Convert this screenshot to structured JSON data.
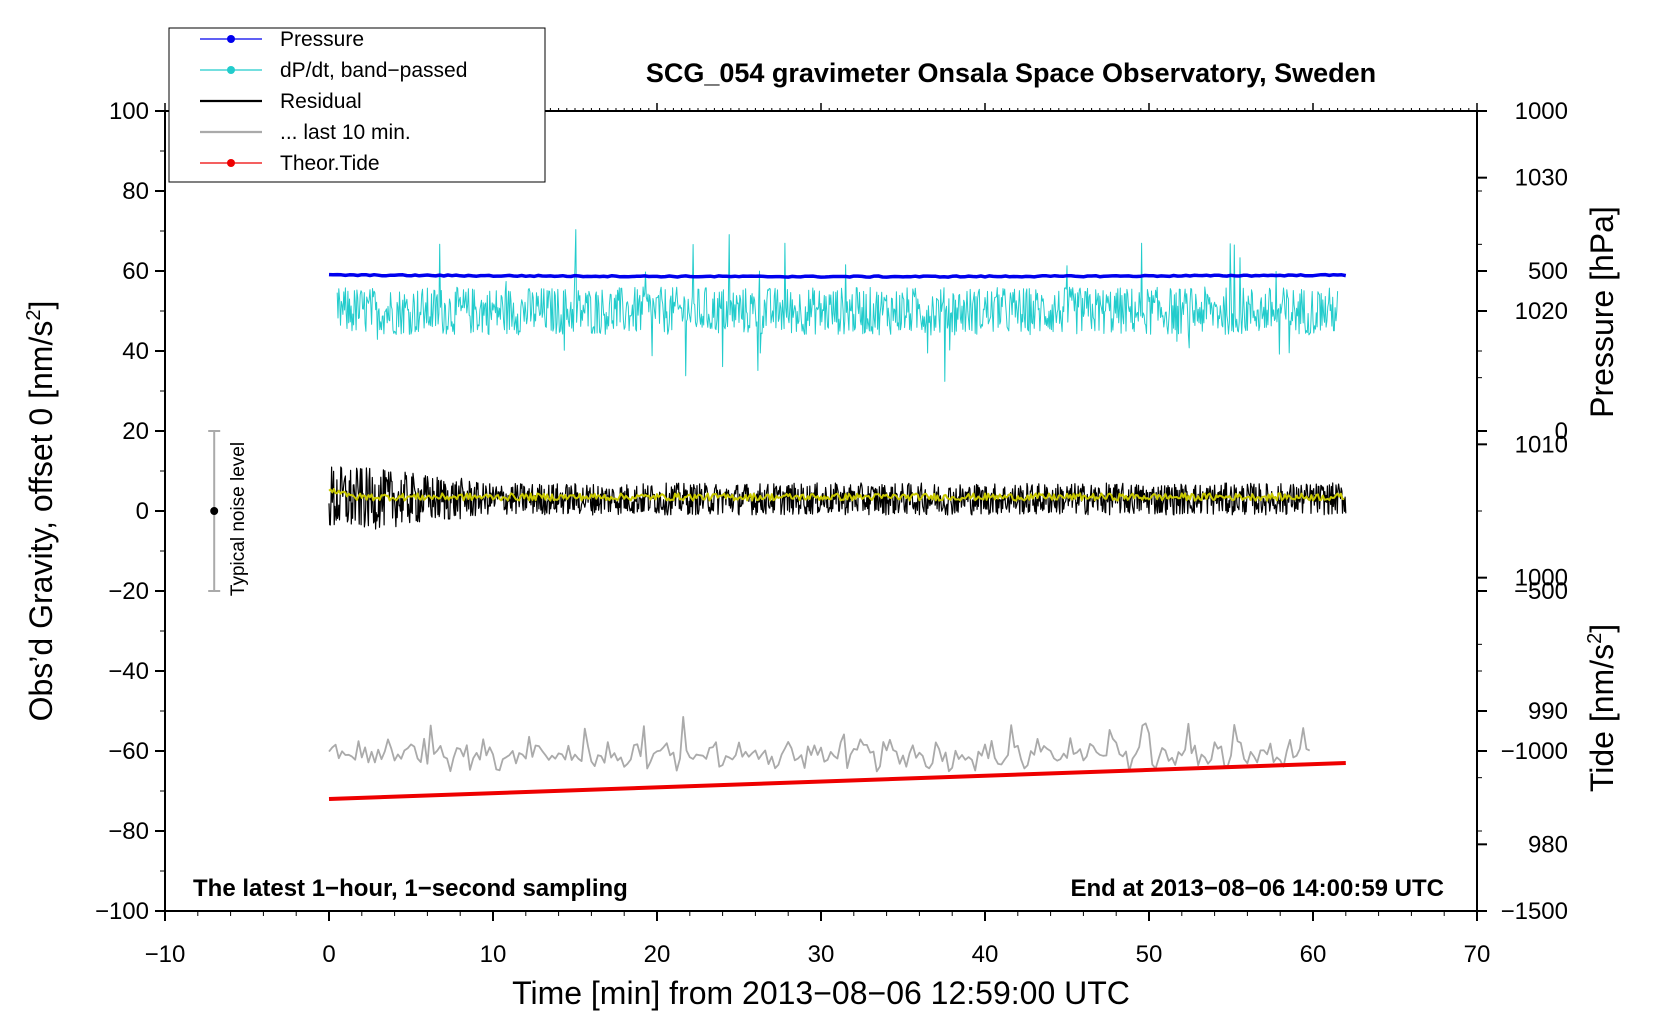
{
  "chart_data": {
    "type": "line",
    "title": "SCG_054 gravimeter Onsala Space Observatory, Sweden",
    "xlabel": "Time [min] from 2013−08−06 12:59:00 UTC",
    "ylabel": "Obs’d Gravity, offset 0 [nm/s",
    "ylabel_sup": "2",
    "ylabel_close": "]",
    "y2label_pressure": "Pressure [hPa]",
    "y2label_tide": "Tide [nm/s",
    "y2label_tide_sup": "2",
    "y2label_tide_close": "]",
    "xlim": [
      -10,
      70
    ],
    "ylim": [
      -100,
      100
    ],
    "pressure_lim": [
      975,
      1035
    ],
    "tide_lim": [
      -1500,
      1000
    ],
    "x_ticks": [
      "−10",
      "0",
      "10",
      "20",
      "30",
      "40",
      "50",
      "60",
      "70"
    ],
    "y_ticks": [
      "−100",
      "−80",
      "−60",
      "−40",
      "−20",
      "0",
      "20",
      "40",
      "60",
      "80",
      "100"
    ],
    "pressure_ticks": [
      "980",
      "990",
      "1000",
      "1010",
      "1020",
      "1030"
    ],
    "tide_ticks": [
      "−1500",
      "−1000",
      "−500",
      "0",
      "500",
      "1000"
    ],
    "legend": [
      {
        "label": "Pressure",
        "color": "#0000ee",
        "marker": true
      },
      {
        "label": "dP/dt, band−passed",
        "color": "#22cccc",
        "marker": true
      },
      {
        "label": "Residual",
        "color": "#000000",
        "marker": false
      },
      {
        "label": "... last 10 min.",
        "color": "#aaaaaa",
        "marker": false
      },
      {
        "label": "Theor.Tide",
        "color": "#ee0000",
        "marker": true
      }
    ],
    "series": [
      {
        "name": "Pressure",
        "color": "#0000ee",
        "x_range": [
          0,
          62
        ],
        "approx_gravity_level": 59
      },
      {
        "name": "dP/dt, band-passed",
        "color": "#22cccc",
        "x_range": [
          0.5,
          61.5
        ],
        "approx_gravity_level": 50,
        "amplitude": 6
      },
      {
        "name": "Residual",
        "color": "#000000",
        "x_range": [
          0,
          62
        ],
        "approx_gravity_level": 3,
        "amplitude": 4
      },
      {
        "name": "Residual (smoothed)",
        "color": "#c8c800",
        "x_range": [
          0,
          62
        ],
        "approx_gravity_level": 3.5
      },
      {
        "name": "... last 10 min.",
        "color": "#aaaaaa",
        "x_range": [
          0,
          60
        ],
        "approx_gravity_level": -61,
        "amplitude": 3
      },
      {
        "name": "Theor.Tide",
        "color": "#ee0000",
        "x": [
          0,
          62
        ],
        "y": [
          -72,
          -63
        ]
      }
    ],
    "noise_bar": {
      "label": "Typical noise level",
      "x": -7,
      "center": 0,
      "range": [
        -20,
        20
      ]
    },
    "annotation_left": "The latest 1−hour, 1−second sampling",
    "annotation_right": "End at 2013−08−06 14:00:59 UTC"
  }
}
